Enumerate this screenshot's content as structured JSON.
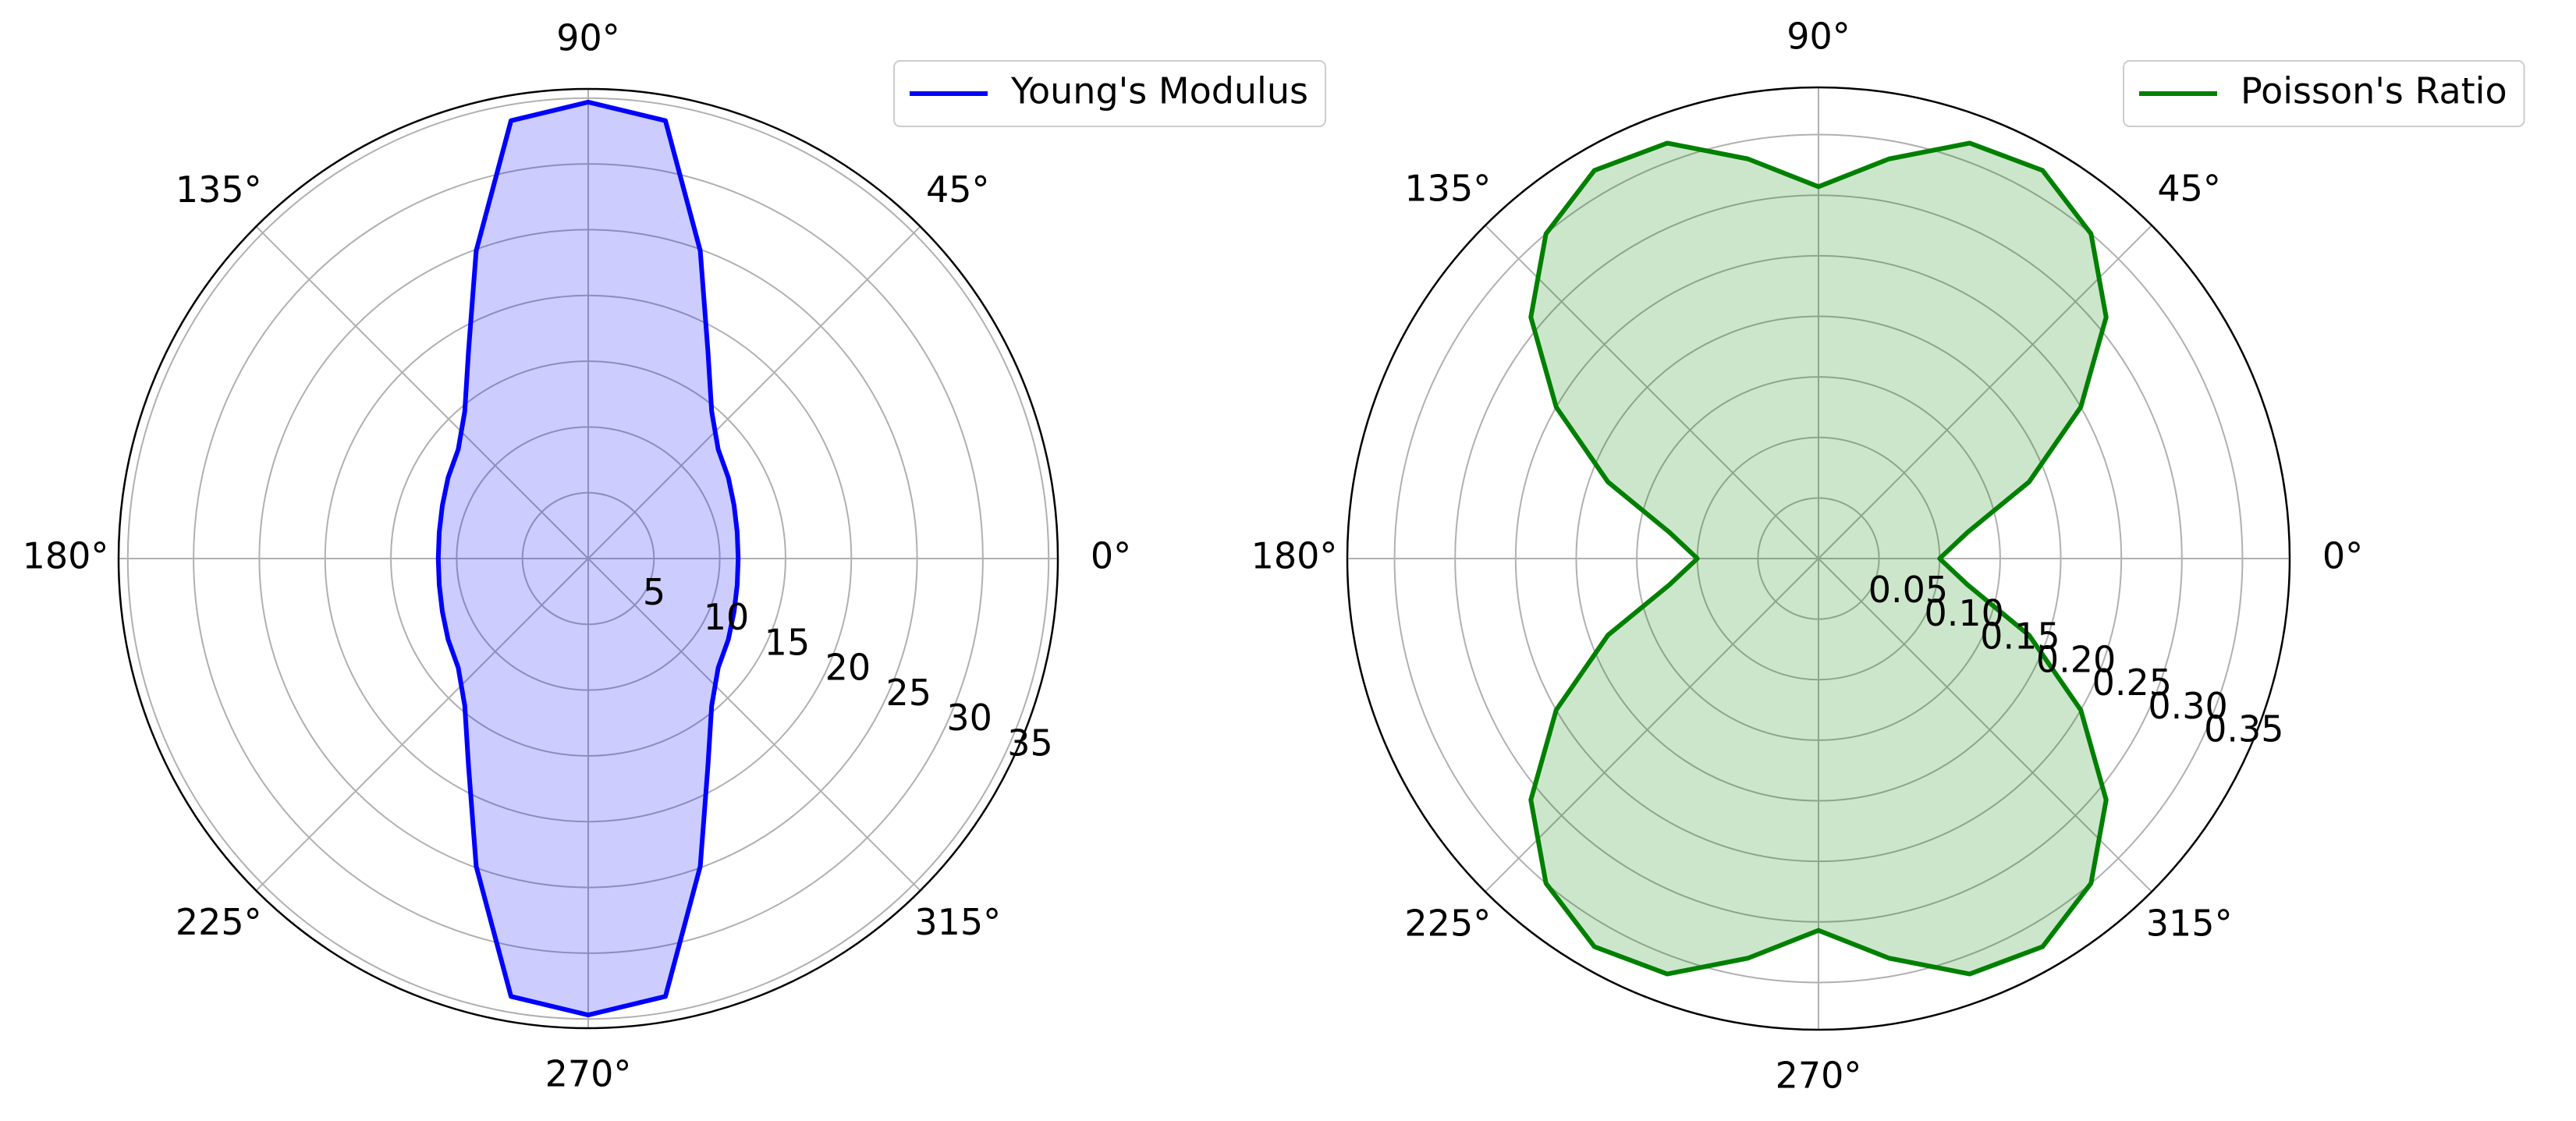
{
  "chart_data": [
    {
      "type": "polar",
      "x": [
        0,
        10,
        20,
        30,
        40,
        50,
        60,
        70,
        80,
        90,
        100,
        110,
        120,
        130,
        140,
        150,
        160,
        170,
        180,
        190,
        200,
        210,
        220,
        230,
        240,
        250,
        260,
        270,
        280,
        290,
        300,
        310,
        320,
        330,
        340,
        350
      ],
      "series": [
        {
          "name": "Young's Modulus",
          "color": "#0000ff",
          "values": [
            11.4,
            11.5,
            11.8,
            12.3,
            12.9,
            14.6,
            18.2,
            24.9,
            33.8,
            34.7,
            33.8,
            24.9,
            18.2,
            14.6,
            12.9,
            12.3,
            11.8,
            11.5,
            11.4,
            11.5,
            11.8,
            12.3,
            12.9,
            14.6,
            18.2,
            24.9,
            33.8,
            34.7,
            33.8,
            24.9,
            18.2,
            14.6,
            12.9,
            12.3,
            11.8,
            11.5
          ]
        }
      ],
      "fill": true,
      "fill_opacity": 0.2,
      "ylim": [
        0,
        35.7
      ],
      "yticks": [
        5,
        10,
        15,
        20,
        25,
        30,
        35
      ],
      "xticks": [
        {
          "value": 0,
          "label": "0°"
        },
        {
          "value": 45,
          "label": "45°"
        },
        {
          "value": 90,
          "label": "90°"
        },
        {
          "value": 135,
          "label": "135°"
        },
        {
          "value": 180,
          "label": "180°"
        },
        {
          "value": 225,
          "label": "225°"
        },
        {
          "value": 270,
          "label": "270°"
        },
        {
          "value": 315,
          "label": "315°"
        }
      ],
      "grid": true,
      "legend": "upper right"
    },
    {
      "type": "polar",
      "x": [
        0,
        10,
        20,
        30,
        40,
        50,
        60,
        70,
        80,
        90,
        100,
        110,
        120,
        130,
        140,
        150,
        160,
        170,
        180,
        190,
        200,
        210,
        220,
        230,
        240,
        250,
        260,
        270,
        280,
        290,
        300,
        310,
        320,
        330,
        340,
        350
      ],
      "series": [
        {
          "name": "Poisson's Ratio",
          "color": "#008000",
          "values": [
            0.1,
            0.125,
            0.185,
            0.25,
            0.31,
            0.35,
            0.37,
            0.365,
            0.335,
            0.307,
            0.335,
            0.365,
            0.37,
            0.35,
            0.31,
            0.25,
            0.185,
            0.125,
            0.1,
            0.125,
            0.185,
            0.25,
            0.31,
            0.35,
            0.37,
            0.365,
            0.335,
            0.307,
            0.335,
            0.365,
            0.37,
            0.35,
            0.31,
            0.25,
            0.185,
            0.125
          ]
        }
      ],
      "fill": true,
      "fill_opacity": 0.2,
      "ylim": [
        0,
        0.389
      ],
      "yticks": [
        0.05,
        {
          "value": 0.1,
          "label": "0.10"
        },
        0.15,
        {
          "value": 0.2,
          "label": "0.20"
        },
        0.25,
        {
          "value": 0.3,
          "label": "0.30"
        },
        0.35
      ],
      "xticks": [
        {
          "value": 0,
          "label": "0°"
        },
        {
          "value": 45,
          "label": "45°"
        },
        {
          "value": 90,
          "label": "90°"
        },
        {
          "value": 135,
          "label": "135°"
        },
        {
          "value": 180,
          "label": "180°"
        },
        {
          "value": 225,
          "label": "225°"
        },
        {
          "value": 270,
          "label": "270°"
        },
        {
          "value": 315,
          "label": "315°"
        }
      ],
      "grid": true,
      "legend": "upper right"
    }
  ]
}
